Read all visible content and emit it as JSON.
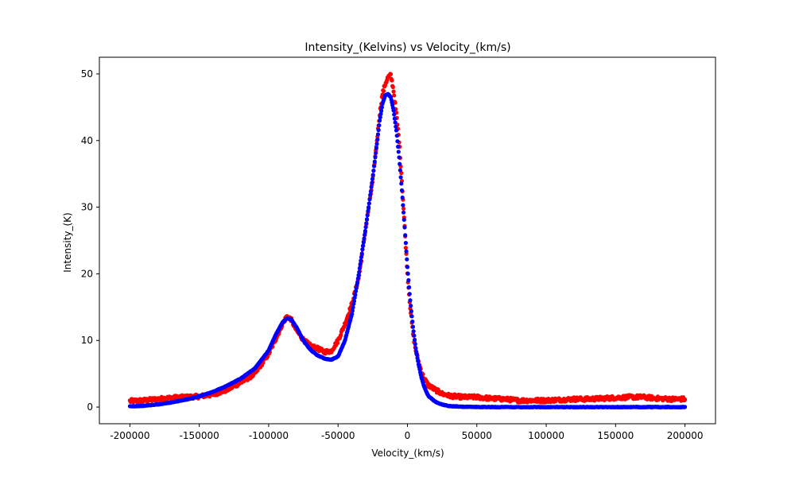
{
  "chart_data": {
    "type": "scatter",
    "title": "Intensity_(Kelvins) vs Velocity_(km/s)",
    "xlabel": "Velocity_(km/s)",
    "ylabel": "Intensity_(K)",
    "xlim": [
      -222000,
      222000
    ],
    "ylim": [
      -2.5,
      52.5
    ],
    "xticks": [
      -200000,
      -150000,
      -100000,
      -50000,
      0,
      50000,
      100000,
      150000,
      200000
    ],
    "yticks": [
      0,
      10,
      20,
      30,
      40,
      50
    ],
    "grid": false,
    "legend": "none",
    "series": [
      {
        "color": "#ff0000",
        "x": [
          -200000,
          -190000,
          -180000,
          -170000,
          -160000,
          -150000,
          -140000,
          -130000,
          -120000,
          -110000,
          -100000,
          -95000,
          -90000,
          -87000,
          -84000,
          -80000,
          -75000,
          -70000,
          -65000,
          -60000,
          -55000,
          -50000,
          -45000,
          -40000,
          -35000,
          -30000,
          -25000,
          -22000,
          -20000,
          -18000,
          -16000,
          -14000,
          -12000,
          -10000,
          -8000,
          -6000,
          -4000,
          -2000,
          0,
          2000,
          4000,
          6000,
          8000,
          10000,
          12000,
          15000,
          20000,
          25000,
          30000,
          40000,
          50000,
          60000,
          70000,
          80000,
          90000,
          100000,
          110000,
          120000,
          130000,
          140000,
          150000,
          160000,
          170000,
          180000,
          190000,
          200000
        ],
        "y": [
          0.9,
          1.0,
          1.2,
          1.4,
          1.5,
          1.6,
          1.9,
          2.6,
          3.7,
          5.0,
          8.0,
          10.2,
          12.5,
          13.6,
          13.2,
          11.5,
          10.1,
          9.2,
          8.8,
          8.3,
          8.4,
          10.0,
          12.5,
          15.5,
          19.5,
          27.0,
          34.0,
          40.0,
          44.0,
          47.0,
          48.5,
          49.5,
          49.8,
          47.5,
          44.0,
          40.0,
          34.0,
          27.0,
          20.0,
          15.0,
          11.0,
          8.5,
          6.8,
          5.4,
          4.3,
          3.3,
          2.6,
          2.0,
          1.7,
          1.5,
          1.5,
          1.3,
          1.2,
          1.0,
          1.0,
          1.0,
          1.1,
          1.2,
          1.2,
          1.3,
          1.4,
          1.5,
          1.5,
          1.3,
          1.2,
          1.2
        ]
      },
      {
        "color": "#0000ff",
        "x": [
          -200000,
          -190000,
          -180000,
          -170000,
          -160000,
          -150000,
          -140000,
          -130000,
          -120000,
          -110000,
          -100000,
          -95000,
          -90000,
          -87000,
          -84000,
          -80000,
          -75000,
          -70000,
          -65000,
          -60000,
          -55000,
          -50000,
          -45000,
          -40000,
          -35000,
          -30000,
          -25000,
          -22000,
          -20000,
          -18000,
          -16000,
          -14000,
          -12000,
          -10000,
          -8000,
          -6000,
          -4000,
          -2000,
          0,
          2000,
          4000,
          6000,
          8000,
          10000,
          12000,
          15000,
          20000,
          25000,
          30000,
          40000,
          50000,
          60000,
          70000,
          80000,
          90000,
          100000,
          110000,
          120000,
          130000,
          140000,
          150000,
          160000,
          170000,
          180000,
          190000,
          200000
        ],
        "y": [
          0.1,
          0.2,
          0.4,
          0.7,
          1.1,
          1.6,
          2.3,
          3.2,
          4.3,
          5.8,
          8.5,
          10.8,
          12.7,
          13.3,
          13.2,
          12.0,
          10.0,
          8.6,
          7.8,
          7.3,
          7.1,
          7.6,
          10.0,
          14.0,
          20.0,
          27.0,
          34.5,
          39.5,
          43.0,
          45.5,
          46.8,
          47.0,
          46.5,
          44.5,
          41.5,
          37.5,
          32.5,
          27.0,
          21.0,
          16.0,
          12.0,
          8.8,
          6.4,
          4.5,
          3.1,
          1.7,
          0.8,
          0.4,
          0.15,
          0.05,
          0.02,
          0.0,
          0.0,
          0.0,
          0.0,
          0.0,
          0.0,
          0.0,
          0.0,
          0.0,
          0.0,
          0.0,
          0.0,
          0.0,
          0.0,
          0.0
        ]
      }
    ]
  }
}
